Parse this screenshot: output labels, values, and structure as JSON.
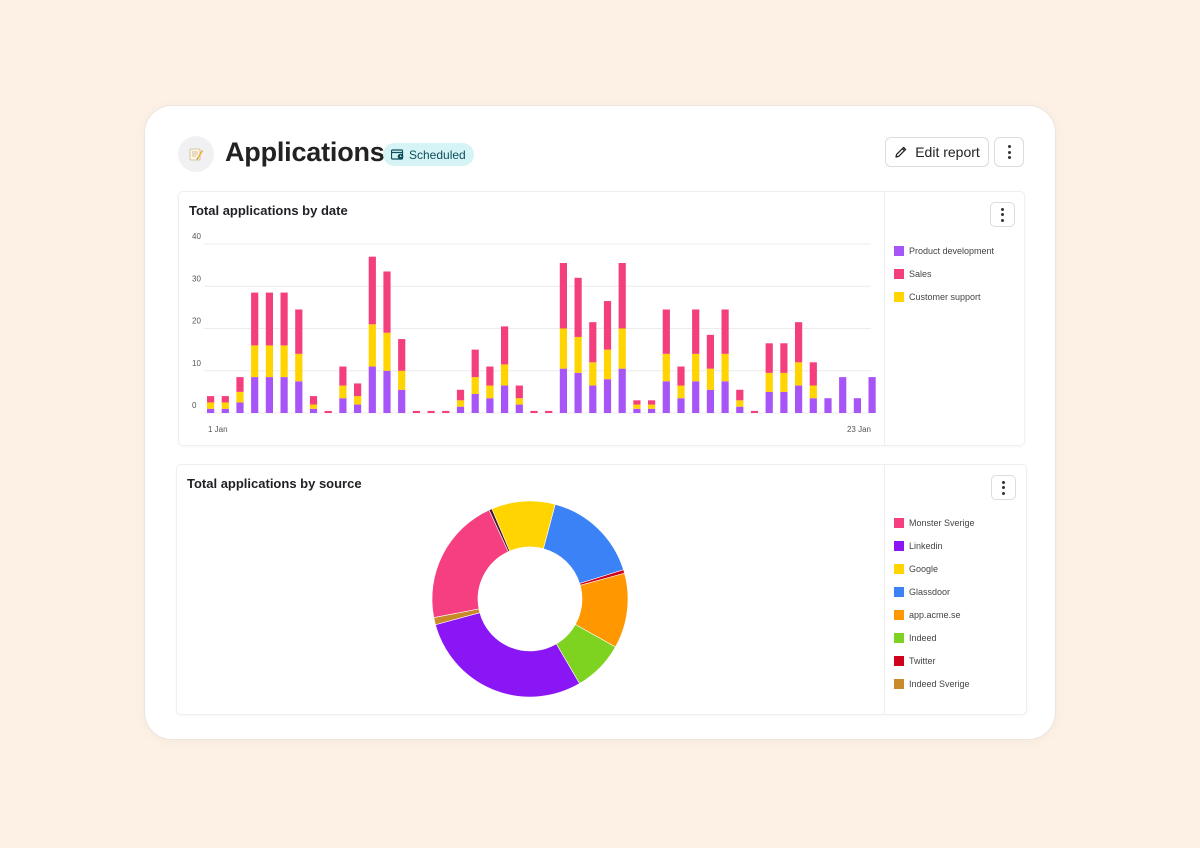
{
  "header": {
    "title": "Applications",
    "app_icon": "memo-emoji",
    "status_badge": "Scheduled",
    "edit_label": "Edit report"
  },
  "colors": {
    "product_development": "#a855f7",
    "sales": "#f43f7f",
    "customer_support": "#ffd400"
  },
  "charts": {
    "by_date": {
      "title": "Total applications by date",
      "legend": [
        {
          "label": "Product development",
          "color": "#a855f7"
        },
        {
          "label": "Sales",
          "color": "#f43f7f"
        },
        {
          "label": "Customer support",
          "color": "#ffd400"
        }
      ]
    },
    "by_source": {
      "title": "Total applications by source",
      "legend": [
        {
          "label": "Monster Sverige",
          "color": "#f53f80"
        },
        {
          "label": "Linkedin",
          "color": "#8b16f5"
        },
        {
          "label": "Google",
          "color": "#ffd400"
        },
        {
          "label": "Glassdoor",
          "color": "#3b82f6"
        },
        {
          "label": "app.acme.se",
          "color": "#ff9800"
        },
        {
          "label": "Indeed",
          "color": "#7ed321"
        },
        {
          "label": "Twitter",
          "color": "#d0021b"
        },
        {
          "label": "Indeed Sverige",
          "color": "#c98b2a"
        }
      ]
    }
  },
  "chart_data": [
    {
      "type": "bar",
      "stacked": true,
      "title": "Total applications by date",
      "x_tick_labels": [
        "1 Jan",
        "23 Jan"
      ],
      "y_ticks": [
        0,
        10,
        20,
        30,
        40
      ],
      "ylim": [
        0,
        40
      ],
      "grid": true,
      "legend_position": "right",
      "series": [
        {
          "name": "Product development",
          "color": "#a855f7",
          "values": [
            1,
            1,
            2.5,
            8.5,
            8.5,
            8.5,
            7.5,
            1,
            0,
            3.5,
            2,
            11,
            10,
            5.5,
            0,
            0,
            0,
            1.5,
            4.5,
            3.5,
            6.5,
            2,
            0,
            0,
            10.5,
            9.5,
            6.5,
            8,
            10.5,
            1,
            1,
            7.5,
            3.5,
            7.5,
            5.5,
            7.5,
            1.5,
            0,
            5,
            5,
            6.5,
            3.5,
            3.5,
            8.5,
            3.5,
            8.5
          ]
        },
        {
          "name": "Customer support",
          "color": "#ffd400",
          "values": [
            1.5,
            1.5,
            2.5,
            7.5,
            7.5,
            7.5,
            6.5,
            1,
            0,
            3,
            2,
            10,
            9,
            4.5,
            0,
            0,
            0,
            1.5,
            4,
            3,
            5,
            1.5,
            0,
            0,
            9.5,
            8.5,
            5.5,
            7,
            9.5,
            1,
            1,
            6.5,
            3,
            6.5,
            5,
            6.5,
            1.5,
            0,
            4.5,
            4.5,
            5.5,
            3,
            0,
            0,
            0,
            0
          ]
        },
        {
          "name": "Sales",
          "color": "#f43f7f",
          "values": [
            1.5,
            1.5,
            3.5,
            12.5,
            12.5,
            12.5,
            10.5,
            2,
            0.5,
            4.5,
            3,
            16,
            14.5,
            7.5,
            0.5,
            0.5,
            0.5,
            2.5,
            6.5,
            4.5,
            9,
            3,
            0.5,
            0.5,
            15.5,
            14,
            9.5,
            11.5,
            15.5,
            1,
            1,
            10.5,
            4.5,
            10.5,
            8,
            10.5,
            2.5,
            0.5,
            7,
            7,
            9.5,
            5.5,
            0,
            0,
            0,
            0
          ]
        }
      ]
    },
    {
      "type": "pie",
      "donut": true,
      "title": "Total applications by source",
      "legend_position": "right",
      "slices": [
        {
          "label": "Glassdoor",
          "value": 16.2,
          "color": "#3b82f6"
        },
        {
          "label": "Twitter",
          "value": 0.6,
          "color": "#d0021b"
        },
        {
          "label": "app.acme.se",
          "value": 12.5,
          "color": "#ff9800"
        },
        {
          "label": "Indeed",
          "value": 8.5,
          "color": "#7ed321"
        },
        {
          "label": "Linkedin",
          "value": 29.5,
          "color": "#8b16f5"
        },
        {
          "label": "Indeed Sverige",
          "value": 1.2,
          "color": "#c98b2a"
        },
        {
          "label": "Monster Sverige",
          "value": 21.4,
          "color": "#f53f80"
        },
        {
          "label": "Twitter",
          "value": 0.5,
          "color": "#4a1a2a"
        },
        {
          "label": "Google",
          "value": 10.6,
          "color": "#ffd400"
        }
      ]
    }
  ]
}
